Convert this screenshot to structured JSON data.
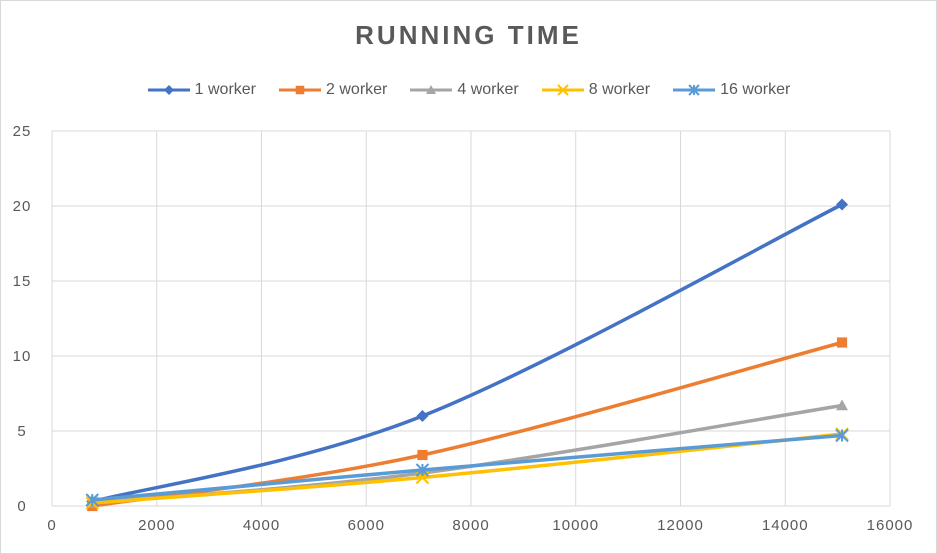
{
  "chart_data": {
    "type": "scatter",
    "title": "RUNNING TIME",
    "xlabel": "",
    "ylabel": "",
    "xlim": [
      0,
      16000
    ],
    "ylim": [
      0,
      25
    ],
    "xticks": [
      "0",
      "2000",
      "4000",
      "6000",
      "8000",
      "10000",
      "12000",
      "14000",
      "16000"
    ],
    "yticks": [
      "0",
      "5",
      "10",
      "15",
      "20",
      "25"
    ],
    "grid": true,
    "legend_position": "top",
    "smooth_lines": true,
    "series": [
      {
        "name": "1 worker",
        "color": "#4472C4",
        "marker": "diamond",
        "x": [
          768,
          7073,
          15084
        ],
        "y": [
          0.3,
          6.0,
          20.1
        ]
      },
      {
        "name": "2 worker",
        "color": "#ED7D31",
        "marker": "square",
        "x": [
          768,
          7073,
          15084
        ],
        "y": [
          0.0,
          3.4,
          10.9
        ]
      },
      {
        "name": "4 worker",
        "color": "#A5A5A5",
        "marker": "triangle",
        "x": [
          768,
          7073,
          15084
        ],
        "y": [
          0.2,
          2.2,
          6.7
        ]
      },
      {
        "name": "8 worker",
        "color": "#FFC000",
        "marker": "x",
        "x": [
          768,
          7073,
          15084
        ],
        "y": [
          0.2,
          1.9,
          4.8
        ]
      },
      {
        "name": "16 worker",
        "color": "#5B9BD5",
        "marker": "star",
        "x": [
          768,
          7073,
          15084
        ],
        "y": [
          0.4,
          2.4,
          4.7
        ]
      }
    ]
  }
}
